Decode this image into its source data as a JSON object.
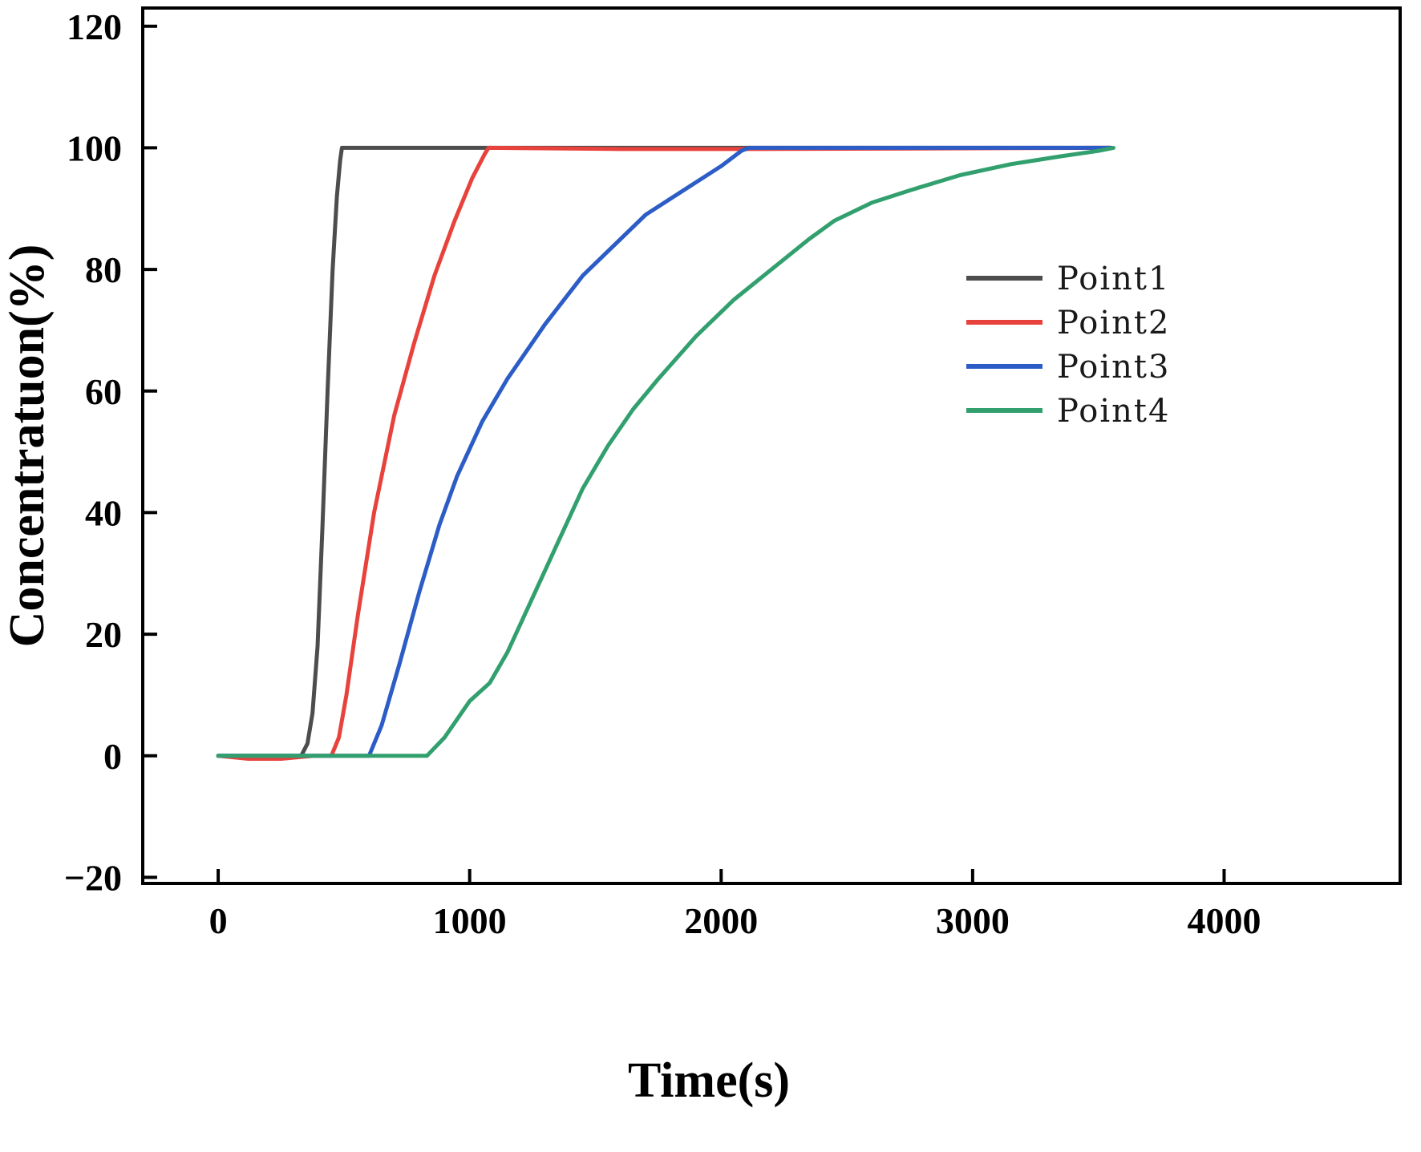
{
  "chart_data": {
    "type": "line",
    "title": "",
    "xlabel": "Time(s)",
    "ylabel": "Concentratuon(%)",
    "xlim": [
      -300,
      4700
    ],
    "ylim": [
      -21,
      123
    ],
    "xticks": [
      0,
      1000,
      2000,
      3000,
      4000
    ],
    "yticks": [
      -20,
      0,
      20,
      40,
      60,
      80,
      100,
      120
    ],
    "grid": false,
    "legend_position": "right-middle",
    "frame_color": "#000000",
    "series": [
      {
        "name": "Point1",
        "color": "#4d4d4d",
        "points": [
          [
            0,
            0
          ],
          [
            150,
            0
          ],
          [
            300,
            0
          ],
          [
            330,
            0
          ],
          [
            355,
            2
          ],
          [
            375,
            7
          ],
          [
            395,
            18
          ],
          [
            415,
            38
          ],
          [
            435,
            60
          ],
          [
            455,
            80
          ],
          [
            472,
            92
          ],
          [
            485,
            98
          ],
          [
            492,
            100
          ],
          [
            800,
            100
          ],
          [
            1500,
            100
          ],
          [
            2500,
            100
          ],
          [
            3550,
            100
          ]
        ]
      },
      {
        "name": "Point2",
        "color": "#e8423c",
        "points": [
          [
            0,
            0
          ],
          [
            120,
            -0.5
          ],
          [
            250,
            -0.5
          ],
          [
            380,
            0
          ],
          [
            450,
            0
          ],
          [
            480,
            3
          ],
          [
            510,
            10
          ],
          [
            555,
            23
          ],
          [
            620,
            40
          ],
          [
            700,
            56
          ],
          [
            780,
            68
          ],
          [
            860,
            79
          ],
          [
            940,
            88
          ],
          [
            1010,
            95
          ],
          [
            1060,
            99
          ],
          [
            1075,
            100
          ],
          [
            1600,
            99.8
          ],
          [
            2100,
            99.8
          ],
          [
            3550,
            100
          ]
        ]
      },
      {
        "name": "Point3",
        "color": "#2c5cc5",
        "points": [
          [
            0,
            0
          ],
          [
            300,
            0
          ],
          [
            600,
            0
          ],
          [
            650,
            5
          ],
          [
            720,
            15
          ],
          [
            800,
            27
          ],
          [
            880,
            38
          ],
          [
            950,
            46
          ],
          [
            1050,
            55
          ],
          [
            1150,
            62
          ],
          [
            1300,
            71
          ],
          [
            1450,
            79
          ],
          [
            1550,
            83
          ],
          [
            1700,
            89
          ],
          [
            1850,
            93
          ],
          [
            2000,
            97
          ],
          [
            2080,
            99.5
          ],
          [
            2110,
            100
          ],
          [
            2600,
            100
          ],
          [
            3100,
            100
          ],
          [
            3550,
            100
          ]
        ]
      },
      {
        "name": "Point4",
        "color": "#32a06e",
        "points": [
          [
            0,
            0
          ],
          [
            400,
            0
          ],
          [
            830,
            0
          ],
          [
            900,
            3
          ],
          [
            1000,
            9
          ],
          [
            1080,
            12
          ],
          [
            1150,
            17
          ],
          [
            1250,
            26
          ],
          [
            1350,
            35
          ],
          [
            1450,
            44
          ],
          [
            1550,
            51
          ],
          [
            1650,
            57
          ],
          [
            1750,
            62
          ],
          [
            1900,
            69
          ],
          [
            2050,
            75
          ],
          [
            2200,
            80
          ],
          [
            2350,
            85
          ],
          [
            2450,
            88
          ],
          [
            2600,
            91
          ],
          [
            2750,
            93
          ],
          [
            2950,
            95.5
          ],
          [
            3150,
            97.3
          ],
          [
            3350,
            98.6
          ],
          [
            3500,
            99.5
          ],
          [
            3560,
            100
          ]
        ]
      }
    ]
  }
}
